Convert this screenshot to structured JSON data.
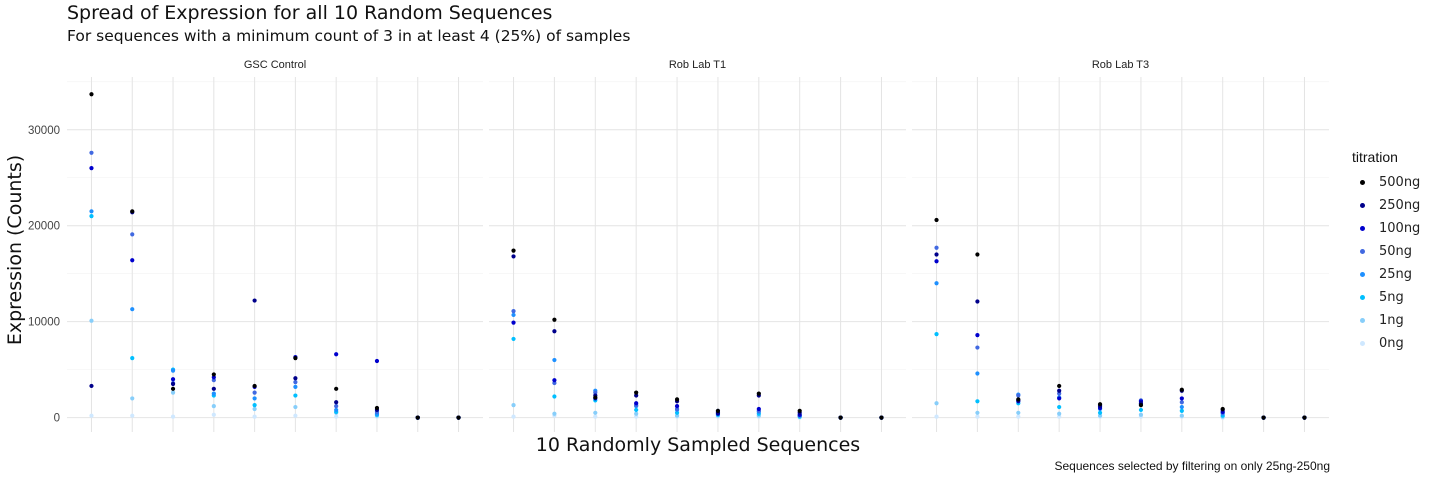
{
  "chart_data": {
    "type": "scatter",
    "title": "Spread of Expression for all 10 Random Sequences",
    "subtitle": "For sequences with a minimum count of 3 in at least 4 (25%) of samples",
    "xlabel": "10 Randomly Sampled Sequences",
    "ylabel": "Expression (Counts)",
    "caption": "Sequences selected by filtering on only 25ng-250ng",
    "ylim": [
      -1500,
      35500
    ],
    "yticks": [
      0,
      10000,
      20000,
      30000
    ],
    "ytick_labels": [
      "0",
      "10000",
      "20000",
      "30000"
    ],
    "x_tick_labels_shown": false,
    "grid": true,
    "legend": {
      "title": "titration",
      "position": "right",
      "entries": [
        "500ng",
        "250ng",
        "100ng",
        "50ng",
        "25ng",
        "5ng",
        "1ng",
        "0ng"
      ]
    },
    "series_colors": {
      "500ng": "#000000",
      "250ng": "#00008b",
      "100ng": "#0000cd",
      "50ng": "#4169e1",
      "25ng": "#1e90ff",
      "5ng": "#00bfff",
      "1ng": "#87cefa",
      "0ng": "#cfe8ff"
    },
    "facets": [
      {
        "name": "GSC Control",
        "series": [
          {
            "name": "500ng",
            "values": [
              33700,
              21500,
              3000,
              4500,
              3300,
              6200,
              3000,
              1000,
              0,
              0
            ]
          },
          {
            "name": "250ng",
            "values": [
              3300,
              21400,
              3500,
              3000,
              12200,
              4100,
              1600,
              800,
              0,
              0
            ]
          },
          {
            "name": "100ng",
            "values": [
              26000,
              16400,
              4000,
              4200,
              3200,
              6300,
              6600,
              5900,
              0,
              0
            ]
          },
          {
            "name": "50ng",
            "values": [
              27600,
              19100,
              3600,
              3900,
              2600,
              3700,
              1200,
              600,
              0,
              0
            ]
          },
          {
            "name": "25ng",
            "values": [
              21500,
              11300,
              4900,
              2500,
              2000,
              3200,
              800,
              400,
              0,
              0
            ]
          },
          {
            "name": "5ng",
            "values": [
              21000,
              6200,
              5000,
              2300,
              1300,
              2300,
              600,
              300,
              0,
              0
            ]
          },
          {
            "name": "1ng",
            "values": [
              10100,
              2000,
              2600,
              1200,
              900,
              1100,
              500,
              200,
              0,
              0
            ]
          },
          {
            "name": "0ng",
            "values": [
              200,
              200,
              100,
              300,
              100,
              200,
              100,
              100,
              0,
              0
            ]
          }
        ]
      },
      {
        "name": "Rob Lab T1",
        "series": [
          {
            "name": "500ng",
            "values": [
              17400,
              10200,
              2100,
              2600,
              1900,
              700,
              2500,
              700,
              0,
              0
            ]
          },
          {
            "name": "250ng",
            "values": [
              16800,
              9000,
              2300,
              2300,
              1700,
              500,
              2300,
              500,
              0,
              0
            ]
          },
          {
            "name": "100ng",
            "values": [
              9900,
              3900,
              2000,
              1500,
              1200,
              400,
              900,
              300,
              0,
              0
            ]
          },
          {
            "name": "50ng",
            "values": [
              11100,
              3600,
              2600,
              1300,
              900,
              700,
              700,
              200,
              0,
              0
            ]
          },
          {
            "name": "25ng",
            "values": [
              10700,
              6000,
              2800,
              1200,
              800,
              600,
              600,
              200,
              0,
              0
            ]
          },
          {
            "name": "5ng",
            "values": [
              8200,
              2200,
              1800,
              800,
              500,
              300,
              400,
              100,
              0,
              0
            ]
          },
          {
            "name": "1ng",
            "values": [
              1300,
              400,
              500,
              400,
              200,
              200,
              200,
              100,
              0,
              0
            ]
          },
          {
            "name": "0ng",
            "values": [
              100,
              200,
              100,
              100,
              100,
              100,
              100,
              0,
              0,
              0
            ]
          }
        ]
      },
      {
        "name": "Rob Lab T3",
        "series": [
          {
            "name": "500ng",
            "values": [
              20600,
              17000,
              1900,
              3300,
              1400,
              1300,
              2900,
              900,
              0,
              0
            ]
          },
          {
            "name": "250ng",
            "values": [
              17000,
              12100,
              1800,
              2800,
              1200,
              1500,
              2800,
              800,
              0,
              0
            ]
          },
          {
            "name": "100ng",
            "values": [
              16300,
              8600,
              1700,
              2000,
              1000,
              1700,
              2000,
              600,
              0,
              0
            ]
          },
          {
            "name": "50ng",
            "values": [
              17700,
              7300,
              2300,
              2500,
              1300,
              1800,
              1600,
              500,
              0,
              0
            ]
          },
          {
            "name": "25ng",
            "values": [
              14000,
              4600,
              2400,
              2100,
              900,
              1400,
              1100,
              400,
              0,
              0
            ]
          },
          {
            "name": "5ng",
            "values": [
              8700,
              1700,
              1500,
              1100,
              500,
              800,
              700,
              200,
              0,
              0
            ]
          },
          {
            "name": "1ng",
            "values": [
              1500,
              500,
              500,
              400,
              200,
              300,
              200,
              100,
              0,
              0
            ]
          },
          {
            "name": "0ng",
            "values": [
              100,
              100,
              100,
              100,
              100,
              100,
              100,
              0,
              0,
              0
            ]
          }
        ]
      }
    ]
  }
}
